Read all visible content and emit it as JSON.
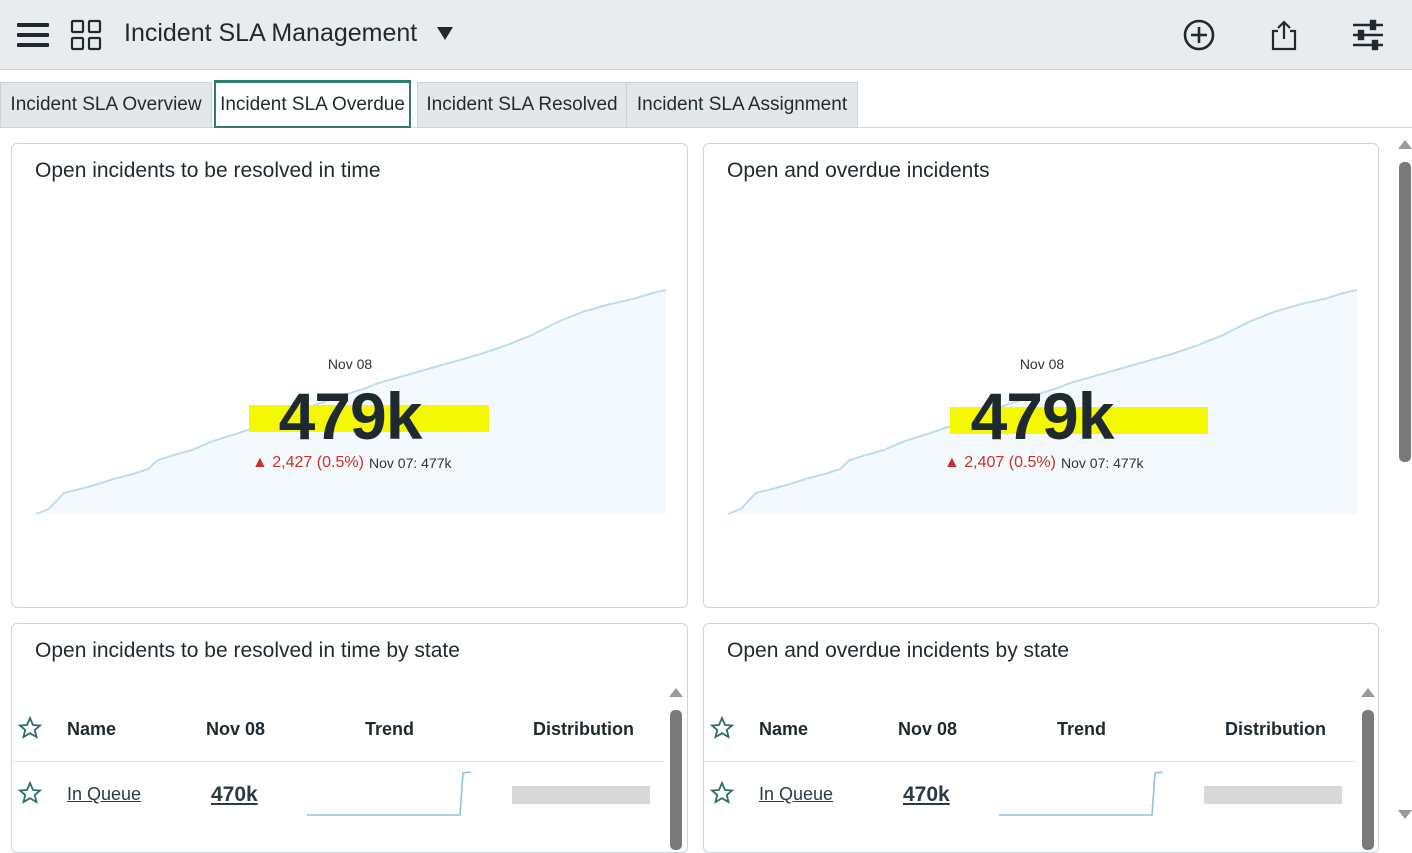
{
  "header": {
    "title": "Incident SLA Management",
    "icons": [
      "menu-icon",
      "grid-icon",
      "add-circle-icon",
      "share-icon",
      "sliders-icon"
    ]
  },
  "tabs": [
    {
      "label": "Incident SLA Overview",
      "active": false
    },
    {
      "label": "Incident SLA Overdue",
      "active": true
    },
    {
      "label": "Incident SLA Resolved",
      "active": false
    },
    {
      "label": "Incident SLA Assignment",
      "active": false
    }
  ],
  "kpi_cards": [
    {
      "title": "Open incidents to be resolved in time",
      "date": "Nov 08",
      "value": "479k",
      "change": "▲ 2,427 (0.5%)",
      "previous": "Nov 07: 477k"
    },
    {
      "title": "Open and overdue incidents",
      "date": "Nov 08",
      "value": "479k",
      "change": "▲ 2,407 (0.5%)",
      "previous": "Nov 07: 477k"
    }
  ],
  "table_cards": [
    {
      "title": "Open incidents to be resolved in time by state",
      "columns": {
        "name": "Name",
        "date": "Nov 08",
        "trend": "Trend",
        "distribution": "Distribution"
      },
      "rows": [
        {
          "name": "In Queue",
          "value": "470k",
          "distribution": 1.0
        }
      ]
    },
    {
      "title": "Open and overdue incidents by state",
      "columns": {
        "name": "Name",
        "date": "Nov 08",
        "trend": "Trend",
        "distribution": "Distribution"
      },
      "rows": [
        {
          "name": "In Queue",
          "value": "470k",
          "distribution": 1.0
        }
      ]
    }
  ],
  "colors": {
    "accent": "#2e7d6e",
    "negative": "#c8302a",
    "highlight": "#f4f800",
    "spark_line": "#bcdcf0",
    "spark_fill": "#f3f9fd"
  }
}
